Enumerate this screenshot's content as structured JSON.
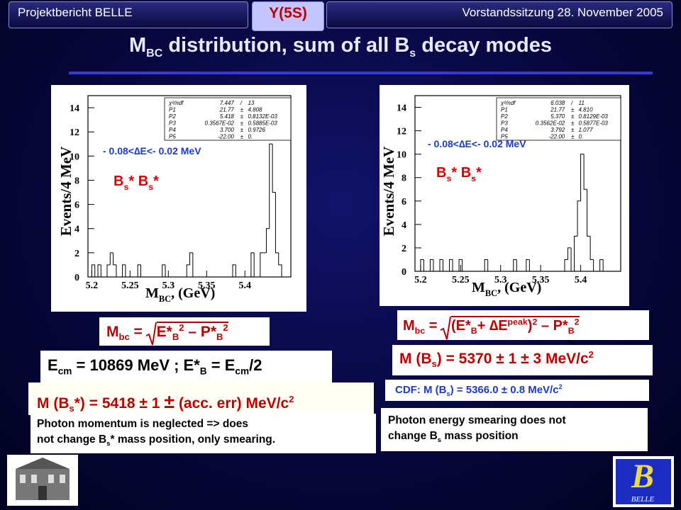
{
  "header": {
    "left": "Projektbericht BELLE",
    "center": "Y(5S)",
    "right": "Vorstandssitzung 28. November 2005"
  },
  "title": [
    "M",
    "BC",
    " distribution,  sum of all B",
    "s",
    " decay modes"
  ],
  "chart_data": [
    {
      "type": "histogram",
      "y_label": "Events/4 MeV",
      "x_label": [
        "M",
        "BC",
        ", (GeV)"
      ],
      "cut_label": "- 0.08<∆E<- 0.02 MeV",
      "decay_label": [
        "B",
        "s",
        "* B",
        "s",
        "*"
      ],
      "stats": [
        [
          "χ²/ndf",
          "7.447",
          "/",
          "13"
        ],
        [
          "P1",
          "21.77",
          "±",
          "4.808"
        ],
        [
          "P2",
          "5.418",
          "±",
          "0.8132E-03"
        ],
        [
          "P3",
          "0.3567E-02",
          "±",
          "0.5885E-03"
        ],
        [
          "P4",
          "3.700",
          "±",
          "0.9726"
        ],
        [
          "P5",
          "-22.00",
          "±",
          "0."
        ]
      ],
      "bins": [
        5.2,
        5.204,
        5.208,
        5.212,
        5.216,
        5.22,
        5.224,
        5.228,
        5.232,
        5.236,
        5.24,
        5.244,
        5.248,
        5.252,
        5.256,
        5.26,
        5.264,
        5.268,
        5.272,
        5.276,
        5.28,
        5.284,
        5.288,
        5.292,
        5.296,
        5.3,
        5.304,
        5.308,
        5.312,
        5.316,
        5.32,
        5.324,
        5.328,
        5.332,
        5.336,
        5.34,
        5.344,
        5.348,
        5.352,
        5.356,
        5.36,
        5.364,
        5.368,
        5.372,
        5.376,
        5.38,
        5.384,
        5.388,
        5.392,
        5.396,
        5.4,
        5.404,
        5.408,
        5.412,
        5.416,
        5.42,
        5.424,
        5.428,
        5.432,
        5.436,
        5.44,
        5.444,
        5.448
      ],
      "counts": [
        1,
        0,
        1,
        0,
        0,
        1,
        2,
        1,
        0,
        0,
        1,
        0,
        0,
        0,
        0,
        1,
        0,
        0,
        0,
        0,
        0,
        0,
        0,
        1,
        0,
        0,
        0,
        0,
        0,
        0,
        0,
        1,
        2,
        0,
        0,
        0,
        0,
        0,
        0,
        0,
        0,
        0,
        0,
        0,
        0,
        0,
        1,
        0,
        0,
        0,
        0,
        0,
        2,
        0,
        0,
        2,
        2,
        4,
        11,
        7,
        2,
        1
      ],
      "color": "#000000",
      "xlim": [
        5.195,
        5.46
      ],
      "ylim": [
        0,
        15
      ],
      "xticks": [
        5.2,
        5.25,
        5.3,
        5.35,
        5.4
      ],
      "yticks": [
        0,
        2,
        4,
        6,
        8,
        10,
        12,
        14
      ]
    },
    {
      "type": "histogram",
      "y_label": "Events/4 MeV",
      "x_label": [
        "M",
        "BC",
        ", (GeV)"
      ],
      "cut_label": "- 0.08<∆E<- 0.02 MeV",
      "decay_label": [
        "B",
        "s",
        "* B",
        "s",
        "*"
      ],
      "stats": [
        [
          "χ²/ndf",
          "6.038",
          "/",
          "11"
        ],
        [
          "P1",
          "21.77",
          "±",
          "4.810"
        ],
        [
          "P2",
          "5.370",
          "±",
          "0.8129E-03"
        ],
        [
          "P3",
          "0.3562E-02",
          "±",
          "0.5877E-03"
        ],
        [
          "P4",
          "3.792",
          "±",
          "1.077"
        ],
        [
          "P5",
          "-22.00",
          "±",
          "0."
        ]
      ],
      "bins": [
        5.2,
        5.204,
        5.208,
        5.212,
        5.216,
        5.22,
        5.224,
        5.228,
        5.232,
        5.236,
        5.24,
        5.244,
        5.248,
        5.252,
        5.256,
        5.26,
        5.264,
        5.268,
        5.272,
        5.276,
        5.28,
        5.284,
        5.288,
        5.292,
        5.296,
        5.3,
        5.304,
        5.308,
        5.312,
        5.316,
        5.32,
        5.324,
        5.328,
        5.332,
        5.336,
        5.34,
        5.344,
        5.348,
        5.352,
        5.356,
        5.36,
        5.364,
        5.368,
        5.372,
        5.376,
        5.38,
        5.384,
        5.388,
        5.392,
        5.396,
        5.4,
        5.404,
        5.408,
        5.412,
        5.416,
        5.42,
        5.424,
        5.428,
        5.432,
        5.436,
        5.44,
        5.444,
        5.448
      ],
      "counts": [
        1,
        0,
        0,
        1,
        0,
        0,
        1,
        0,
        0,
        1,
        0,
        0,
        1,
        0,
        0,
        0,
        0,
        0,
        0,
        0,
        1,
        0,
        0,
        0,
        0,
        0,
        0,
        0,
        0,
        1,
        0,
        0,
        0,
        1,
        0,
        0,
        0,
        0,
        0,
        0,
        0,
        0,
        0,
        0,
        0,
        1,
        2,
        0,
        3,
        6,
        10,
        7,
        3,
        1,
        0,
        0,
        1,
        0,
        0,
        0,
        0,
        0
      ],
      "color": "#000000",
      "xlim": [
        5.193,
        5.45
      ],
      "ylim": [
        0,
        15
      ],
      "xticks": [
        5.2,
        5.25,
        5.3,
        5.35,
        5.4
      ],
      "yticks": [
        0,
        2,
        4,
        6,
        8,
        10,
        12,
        14
      ]
    }
  ],
  "left_notes": {
    "mbc": [
      "M",
      "bc",
      " = ",
      "E*",
      "B",
      "2",
      " – P*",
      "B",
      "2"
    ],
    "ecm": [
      "E",
      "cm",
      " = 10869 MeV  ;  E*",
      "B",
      " = E",
      "cm",
      "/2"
    ],
    "mass": [
      "M (B",
      "s",
      "*) = 5418 ± 1 ",
      "±",
      " (acc. err)  MeV/c",
      "2"
    ],
    "photon": [
      "Photon momentum is neglected  => does",
      "not change B",
      "s",
      "* mass position, only smearing."
    ]
  },
  "right_notes": {
    "mbc": [
      "M",
      "bc",
      " = ",
      "(E*",
      "B",
      "+ ",
      "∆",
      "E",
      "peak",
      ")",
      "2",
      " – P*",
      "B",
      "2"
    ],
    "mass": [
      "M (B",
      "s",
      ") = 5370 ± 1 ± 3 MeV/c",
      "2"
    ],
    "cdf": [
      "CDF:  M (B",
      "s",
      ") = 5366.0 ± 0.8 MeV/c",
      "2"
    ],
    "photon": [
      "Photon energy smearing  does not",
      "change B",
      "s",
      " mass position"
    ]
  },
  "logo_text": "BELLE"
}
